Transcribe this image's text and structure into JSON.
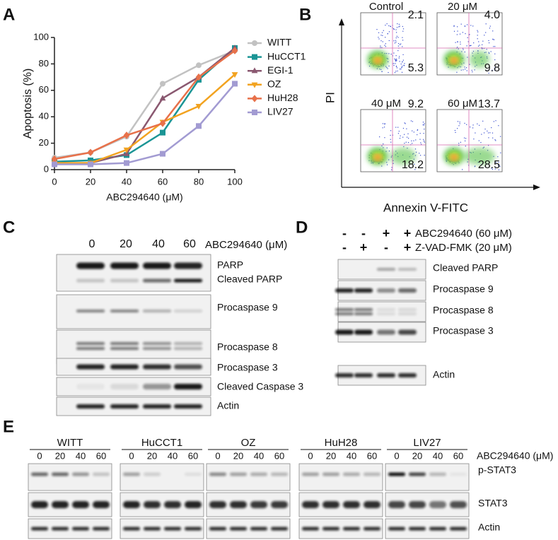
{
  "chart_data": {
    "type": "line",
    "panel": "A",
    "ylabel": "Apoptosis (%)",
    "xlabel": "ABC294640 (μM)",
    "x": [
      0,
      20,
      40,
      60,
      80,
      100
    ],
    "xlim": [
      0,
      100
    ],
    "xticks": [
      0,
      20,
      40,
      60,
      80,
      100
    ],
    "ylim": [
      0,
      100
    ],
    "yticks": [
      0,
      20,
      40,
      60,
      80,
      100
    ],
    "series": [
      {
        "name": "WITT",
        "color": "#c2c2c2",
        "marker": "circle",
        "values": [
          9,
          13,
          25,
          65,
          79,
          90
        ]
      },
      {
        "name": "HuCCT1",
        "color": "#1b9595",
        "marker": "square",
        "values": [
          6,
          7,
          11,
          28,
          68,
          92
        ]
      },
      {
        "name": "EGI-1",
        "color": "#8a5870",
        "marker": "triangle-up",
        "values": [
          5,
          5,
          12,
          54,
          70,
          92
        ]
      },
      {
        "name": "OZ",
        "color": "#f2a320",
        "marker": "triangle-down",
        "values": [
          5,
          5,
          15,
          36,
          48,
          72
        ]
      },
      {
        "name": "HuH28",
        "color": "#e8714a",
        "marker": "diamond",
        "values": [
          8,
          13,
          26,
          35,
          70,
          90
        ]
      },
      {
        "name": "LIV27",
        "color": "#a29bd2",
        "marker": "square",
        "values": [
          4,
          4,
          5,
          12,
          33,
          65
        ]
      }
    ]
  },
  "panel_b": {
    "label": "B",
    "y_label": "PI",
    "x_label": "Annexin V-FITC",
    "plots": [
      {
        "title": "Control",
        "upper_right": "2.1",
        "lower_right": "5.3"
      },
      {
        "title": "20 μM",
        "upper_right": "4.0",
        "lower_right": "9.8"
      },
      {
        "title": "40 μM",
        "upper_right": "9.2",
        "lower_right": "18.2"
      },
      {
        "title": "60 μM",
        "upper_right": "13.7",
        "lower_right": "28.5"
      }
    ]
  },
  "panel_c": {
    "label": "C",
    "lanes": [
      "0",
      "20",
      "40",
      "60"
    ],
    "treatment": "ABC294640 (μM)",
    "rows": [
      [
        "PARP",
        "Cleaved PARP"
      ],
      [
        "Procaspase 9"
      ],
      [
        "Procaspase 8"
      ],
      [
        "Procaspase 3"
      ],
      [
        "Cleaved Caspase 3"
      ],
      [
        "Actin"
      ]
    ]
  },
  "panel_d": {
    "label": "D",
    "treatments": [
      {
        "signs": [
          "-",
          "-",
          "+",
          "+"
        ],
        "name": "ABC294640 (60 μM)"
      },
      {
        "signs": [
          "-",
          "+",
          "-",
          "+"
        ],
        "name": "Z-VAD-FMK (20 μM)"
      }
    ],
    "rows": [
      "Cleaved PARP",
      "Procaspase 9",
      "Procaspase 8",
      "Procaspase 3",
      "Actin"
    ]
  },
  "panel_e": {
    "label": "E",
    "groups": [
      "WITT",
      "HuCCT1",
      "OZ",
      "HuH28",
      "LIV27"
    ],
    "lanes": [
      "0",
      "20",
      "40",
      "60"
    ],
    "treatment": "ABC294640 (μM)",
    "rows": [
      "p-STAT3",
      "STAT3",
      "Actin"
    ]
  }
}
